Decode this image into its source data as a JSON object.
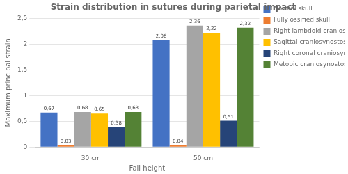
{
  "chart_data": {
    "type": "bar",
    "title": "Strain distribution in sutures during parietal impact",
    "xlabel": "Fall height",
    "ylabel": "Maximum principal strain",
    "categories": [
      "30 cm",
      "50 cm"
    ],
    "series": [
      {
        "name": "Normal skull",
        "color": "#4472C4",
        "values": [
          0.67,
          2.08
        ],
        "value_labels": [
          "0,67",
          "2,08"
        ]
      },
      {
        "name": "Fully ossified skull",
        "color": "#ED7D31",
        "values": [
          0.03,
          0.04
        ],
        "value_labels": [
          "0,03",
          "0,04"
        ]
      },
      {
        "name": "Right lambdoid craniosynostosis",
        "color": "#A5A5A5",
        "values": [
          0.68,
          2.36
        ],
        "value_labels": [
          "0,68",
          "2,36"
        ]
      },
      {
        "name": "Sagittal craniosynostosis",
        "color": "#FFC000",
        "values": [
          0.65,
          2.22
        ],
        "value_labels": [
          "0,65",
          "2,22"
        ]
      },
      {
        "name": "Right coronal craniosynostosis",
        "color": "#264478",
        "values": [
          0.38,
          0.51
        ],
        "value_labels": [
          "0,38",
          "0,51"
        ]
      },
      {
        "name": "Metopic craniosynostosis",
        "color": "#548235",
        "values": [
          0.68,
          2.32
        ],
        "value_labels": [
          "0,68",
          "2,32"
        ]
      }
    ],
    "ylim": [
      0,
      2.5
    ],
    "yticks": [
      0,
      {
        "value": 0.5,
        "label": "0,5"
      },
      1,
      {
        "value": 1.5,
        "label": "1,5"
      },
      2,
      {
        "value": 2.5,
        "label": "2,5"
      }
    ],
    "grid": true,
    "legend": "right",
    "data_labels": true
  }
}
